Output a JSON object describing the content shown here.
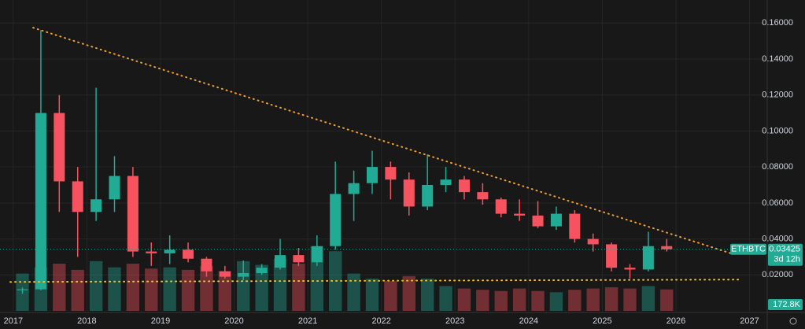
{
  "chart_data": {
    "type": "candlestick",
    "symbol": "ETHBTC",
    "countdown": "3d 12h",
    "x": [
      2017.125,
      2017.375,
      2017.625,
      2017.875,
      2018.125,
      2018.375,
      2018.625,
      2018.875,
      2019.125,
      2019.375,
      2019.625,
      2019.875,
      2020.125,
      2020.375,
      2020.625,
      2020.875,
      2021.125,
      2021.375,
      2021.625,
      2021.875,
      2022.125,
      2022.375,
      2022.625,
      2022.875,
      2023.125,
      2023.375,
      2023.625,
      2023.875,
      2024.125,
      2024.375,
      2024.625,
      2024.875,
      2025.125,
      2025.375,
      2025.625,
      2025.875
    ],
    "open": [
      0.0115,
      0.012,
      0.11,
      0.072,
      0.055,
      0.062,
      0.075,
      0.033,
      0.032,
      0.034,
      0.029,
      0.022,
      0.019,
      0.021,
      0.024,
      0.031,
      0.027,
      0.036,
      0.065,
      0.071,
      0.08,
      0.073,
      0.058,
      0.07,
      0.073,
      0.066,
      0.062,
      0.054,
      0.053,
      0.047,
      0.054,
      0.04,
      0.037,
      0.024,
      0.023,
      0.036
    ],
    "high": [
      0.013,
      0.156,
      0.12,
      0.08,
      0.124,
      0.086,
      0.08,
      0.038,
      0.042,
      0.038,
      0.03,
      0.025,
      0.028,
      0.026,
      0.04,
      0.035,
      0.042,
      0.083,
      0.078,
      0.089,
      0.083,
      0.077,
      0.087,
      0.08,
      0.075,
      0.071,
      0.063,
      0.062,
      0.061,
      0.058,
      0.056,
      0.043,
      0.038,
      0.026,
      0.044,
      0.04
    ],
    "low": [
      0.0095,
      0.0115,
      0.055,
      0.03,
      0.05,
      0.055,
      0.03,
      0.025,
      0.026,
      0.027,
      0.019,
      0.018,
      0.017,
      0.02,
      0.023,
      0.025,
      0.025,
      0.034,
      0.05,
      0.065,
      0.062,
      0.053,
      0.056,
      0.066,
      0.062,
      0.059,
      0.052,
      0.05,
      0.046,
      0.045,
      0.038,
      0.033,
      0.022,
      0.018,
      0.022,
      0.033
    ],
    "close": [
      0.012,
      0.11,
      0.072,
      0.055,
      0.062,
      0.075,
      0.033,
      0.032,
      0.034,
      0.029,
      0.022,
      0.019,
      0.021,
      0.024,
      0.031,
      0.027,
      0.036,
      0.065,
      0.071,
      0.08,
      0.073,
      0.058,
      0.07,
      0.073,
      0.066,
      0.062,
      0.054,
      0.053,
      0.047,
      0.054,
      0.04,
      0.037,
      0.024,
      0.023,
      0.036,
      0.03425
    ],
    "volume": [
      300000,
      350000,
      380000,
      330000,
      400000,
      350000,
      380000,
      340000,
      350000,
      330000,
      360000,
      320000,
      400000,
      370000,
      420000,
      380000,
      520000,
      480000,
      300000,
      260000,
      240000,
      280000,
      260000,
      200000,
      180000,
      170000,
      160000,
      180000,
      160000,
      150000,
      170000,
      180000,
      190000,
      180000,
      200000,
      172800
    ],
    "last_volume_label": "172.8K",
    "volume_lim": [
      0,
      2500000
    ],
    "up_color": "#22ab94",
    "down_color": "#f7525f",
    "xlim": [
      2016.82,
      2027.24
    ],
    "ylim": [
      0,
      0.1728
    ],
    "xticks": [
      2017,
      2018,
      2019,
      2020,
      2021,
      2022,
      2023,
      2024,
      2025,
      2026,
      2027
    ],
    "yticks": [
      {
        "value": 0.02,
        "label": "0.02000"
      },
      {
        "value": 0.04,
        "label": "0.04000"
      },
      {
        "value": 0.06,
        "label": "0.06000"
      },
      {
        "value": 0.08,
        "label": "0.08000"
      },
      {
        "value": 0.1,
        "label": "0.10000"
      },
      {
        "value": 0.12,
        "label": "0.12000"
      },
      {
        "value": 0.14,
        "label": "0.14000"
      },
      {
        "value": 0.16,
        "label": "0.16000"
      }
    ],
    "trendlines": [
      {
        "x": [
          2017.27,
          2026.76
        ],
        "values": [
          0.1574,
          0.0318
        ],
        "color": "#f0a030"
      },
      {
        "x": [
          2016.96,
          2026.86
        ],
        "values": [
          0.0161,
          0.0174
        ],
        "color": "#f0c030"
      }
    ],
    "grid": true
  }
}
